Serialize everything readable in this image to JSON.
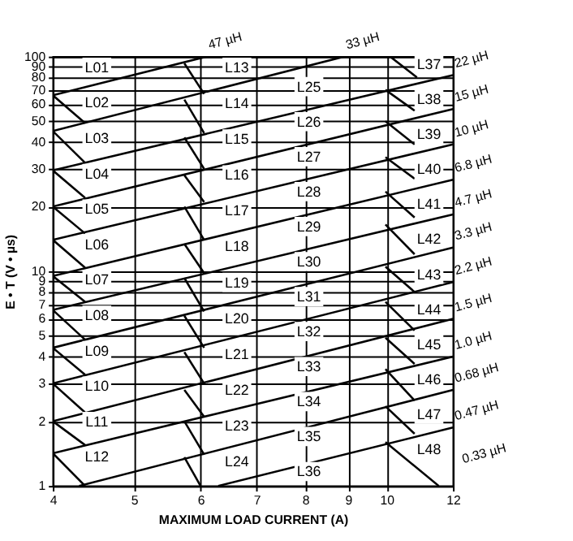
{
  "chart_data": {
    "type": "line",
    "xlabel": "MAXIMUM LOAD CURRENT (A)",
    "ylabel": "E • T (V • µs)",
    "log": "xy",
    "grid": true,
    "xlim": [
      4,
      12
    ],
    "xticks": [
      4,
      5,
      6,
      7,
      8,
      9,
      10,
      12
    ],
    "ylim": [
      1,
      100
    ],
    "yticks": [
      1,
      2,
      3,
      4,
      5,
      6,
      7,
      8,
      9,
      10,
      20,
      30,
      40,
      50,
      60,
      70,
      80,
      90,
      100
    ],
    "series": [
      {
        "name": "47 µH",
        "color": "#000000",
        "x": [
          4,
          6.1
        ],
        "values": [
          66,
          100
        ]
      },
      {
        "name": "33 µH",
        "color": "#000000",
        "x": [
          4,
          8.9
        ],
        "values": [
          45,
          100
        ]
      },
      {
        "name": "22 µH",
        "color": "#000000",
        "x": [
          4,
          12
        ],
        "values": [
          29.5,
          82
        ]
      },
      {
        "name": "15 µH",
        "color": "#000000",
        "x": [
          4,
          12
        ],
        "values": [
          20,
          57
        ]
      },
      {
        "name": "10 µH",
        "color": "#000000",
        "x": [
          4,
          12
        ],
        "values": [
          14,
          39
        ]
      },
      {
        "name": "6.8 µH",
        "color": "#000000",
        "x": [
          4,
          12
        ],
        "values": [
          9.5,
          26.7
        ]
      },
      {
        "name": "4.7 µH",
        "color": "#000000",
        "x": [
          4,
          12
        ],
        "values": [
          6.6,
          18.4
        ]
      },
      {
        "name": "3.3 µH",
        "color": "#000000",
        "x": [
          4,
          12
        ],
        "values": [
          4.4,
          12.9
        ]
      },
      {
        "name": "2.2 µH",
        "color": "#000000",
        "x": [
          4,
          12
        ],
        "values": [
          3.0,
          8.9
        ]
      },
      {
        "name": "1.5 µH",
        "color": "#000000",
        "x": [
          4,
          12
        ],
        "values": [
          2.0,
          6.0
        ]
      },
      {
        "name": "1.0 µH",
        "color": "#000000",
        "x": [
          4,
          12
        ],
        "values": [
          1.42,
          4.0
        ]
      },
      {
        "name": "0.68 µH",
        "color": "#000000",
        "x": [
          4.3,
          12
        ],
        "values": [
          1,
          2.8
        ]
      },
      {
        "name": "0.47 µH",
        "color": "#000000",
        "x": [
          6.3,
          12
        ],
        "values": [
          1,
          1.87
        ]
      },
      {
        "color": "#000000",
        "x": [
          4,
          4.37
        ],
        "values": [
          66,
          49
        ]
      },
      {
        "color": "#000000",
        "x": [
          4,
          4.37
        ],
        "values": [
          45,
          32
        ]
      },
      {
        "color": "#000000",
        "x": [
          4,
          4.37
        ],
        "values": [
          29.5,
          22
        ]
      },
      {
        "color": "#000000",
        "x": [
          4,
          4.37
        ],
        "values": [
          20,
          15
        ]
      },
      {
        "color": "#000000",
        "x": [
          4,
          4.37
        ],
        "values": [
          14,
          10.4
        ]
      },
      {
        "color": "#000000",
        "x": [
          4,
          4.37
        ],
        "values": [
          9.5,
          7.2
        ]
      },
      {
        "color": "#000000",
        "x": [
          4,
          4.37
        ],
        "values": [
          6.6,
          4.8
        ]
      },
      {
        "color": "#000000",
        "x": [
          4,
          4.37
        ],
        "values": [
          4.4,
          3.3
        ]
      },
      {
        "color": "#000000",
        "x": [
          4,
          4.37
        ],
        "values": [
          3.0,
          2.2
        ]
      },
      {
        "color": "#000000",
        "x": [
          4,
          4.37
        ],
        "values": [
          2.0,
          1.55
        ]
      },
      {
        "color": "#000000",
        "x": [
          4,
          4.37
        ],
        "values": [
          1.42,
          1.0
        ]
      },
      {
        "color": "#000000",
        "x": [
          5.74,
          6.06
        ],
        "values": [
          93,
          67
        ]
      },
      {
        "color": "#000000",
        "x": [
          5.74,
          6.06
        ],
        "values": [
          63,
          44
        ]
      },
      {
        "color": "#000000",
        "x": [
          5.74,
          6.06
        ],
        "values": [
          42,
          30
        ]
      },
      {
        "color": "#000000",
        "x": [
          5.74,
          6.06
        ],
        "values": [
          28,
          21
        ]
      },
      {
        "color": "#000000",
        "x": [
          5.74,
          6.06
        ],
        "values": [
          20,
          14
        ]
      },
      {
        "color": "#000000",
        "x": [
          5.74,
          6.06
        ],
        "values": [
          13.4,
          9.8
        ]
      },
      {
        "color": "#000000",
        "x": [
          5.74,
          6.06
        ],
        "values": [
          9.3,
          6.5
        ]
      },
      {
        "color": "#000000",
        "x": [
          5.74,
          6.06
        ],
        "values": [
          6.2,
          4.4
        ]
      },
      {
        "color": "#000000",
        "x": [
          5.74,
          6.06
        ],
        "values": [
          4.2,
          3.0
        ]
      },
      {
        "color": "#000000",
        "x": [
          5.74,
          6.06
        ],
        "values": [
          2.8,
          2.1
        ]
      },
      {
        "color": "#000000",
        "x": [
          5.74,
          6.06
        ],
        "values": [
          2.0,
          1.4
        ]
      },
      {
        "color": "#000000",
        "x": [
          5.74,
          6.0
        ],
        "values": [
          1.36,
          1
        ]
      },
      {
        "color": "#000000",
        "x": [
          10.1,
          10.87
        ],
        "values": [
          100,
          80
        ]
      },
      {
        "color": "#000000",
        "x": [
          9.97,
          10.8
        ],
        "values": [
          70,
          56
        ]
      },
      {
        "color": "#000000",
        "x": [
          9.97,
          10.8
        ],
        "values": [
          50,
          39
        ]
      },
      {
        "color": "#000000",
        "x": [
          9.97,
          10.8
        ],
        "values": [
          34,
          27
        ]
      },
      {
        "color": "#000000",
        "x": [
          9.97,
          10.8
        ],
        "values": [
          23.5,
          17.8
        ]
      },
      {
        "color": "#000000",
        "x": [
          9.97,
          10.8
        ],
        "values": [
          16.5,
          12
        ]
      },
      {
        "color": "#000000",
        "x": [
          9.97,
          10.8
        ],
        "values": [
          10.5,
          8
        ]
      },
      {
        "color": "#000000",
        "x": [
          9.97,
          10.8
        ],
        "values": [
          7.2,
          5.3
        ]
      },
      {
        "color": "#000000",
        "x": [
          9.97,
          10.8
        ],
        "values": [
          4.9,
          3.7
        ]
      },
      {
        "color": "#000000",
        "x": [
          9.97,
          10.8
        ],
        "values": [
          3.5,
          2.5
        ]
      },
      {
        "color": "#000000",
        "x": [
          9.97,
          10.8
        ],
        "values": [
          2.35,
          1.75
        ]
      },
      {
        "color": "#000000",
        "x": [
          9.97,
          11.54
        ],
        "values": [
          1.6,
          1
        ]
      }
    ],
    "annotations": [
      "L01",
      "L02",
      "L03",
      "L04",
      "L05",
      "L06",
      "L07",
      "L08",
      "L09",
      "L10",
      "L11",
      "L12",
      "L13",
      "L14",
      "L15",
      "L16",
      "L17",
      "L18",
      "L19",
      "L20",
      "L21",
      "L22",
      "L23",
      "L24",
      "L25",
      "L26",
      "L27",
      "L28",
      "L29",
      "L30",
      "L31",
      "L32",
      "L33",
      "L34",
      "L35",
      "L36",
      "L37",
      "L38",
      "L39",
      "L40",
      "L41",
      "L42",
      "L43",
      "L44",
      "L45",
      "L46",
      "L47",
      "L48",
      "0.33 µH"
    ]
  }
}
